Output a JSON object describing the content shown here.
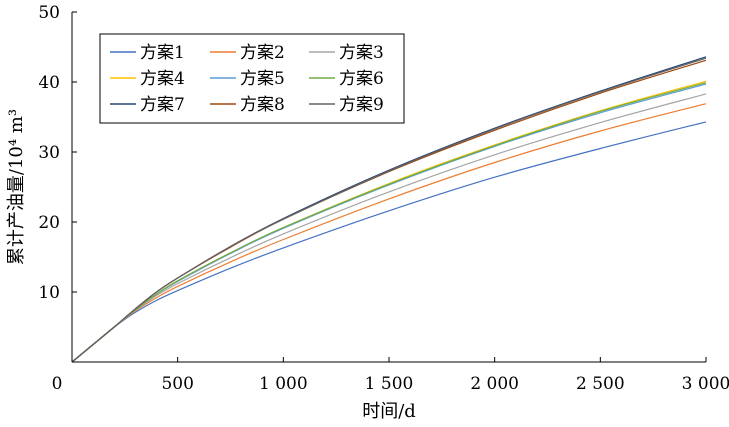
{
  "chart_data": {
    "type": "line",
    "xlabel": "时间/d",
    "ylabel": "累计产油量/10⁴ m³",
    "xlim": [
      0,
      3000
    ],
    "ylim": [
      0,
      50
    ],
    "x_ticks": [
      0,
      500,
      1000,
      1500,
      2000,
      2500,
      3000
    ],
    "x_tick_labels": [
      "0",
      "500",
      "1 000",
      "1 500",
      "2 000",
      "2 500",
      "3 000"
    ],
    "y_ticks": [
      10,
      20,
      30,
      40,
      50
    ],
    "y_tick_labels": [
      "10",
      "20",
      "30",
      "40",
      "50"
    ],
    "grid": false,
    "legend_position": "top-left",
    "x": [
      0,
      100,
      200,
      300,
      400,
      500,
      750,
      1000,
      1500,
      2000,
      2500,
      3000
    ],
    "series": [
      {
        "name": "方案1",
        "color": "#4472C4",
        "values": [
          0,
          2.5,
          5.0,
          7.1,
          8.8,
          10.2,
          13.4,
          16.3,
          21.6,
          26.4,
          30.5,
          34.3
        ]
      },
      {
        "name": "方案2",
        "color": "#ED7D31",
        "values": [
          0,
          2.5,
          5.0,
          7.3,
          9.2,
          10.8,
          14.3,
          17.5,
          23.3,
          28.5,
          33.0,
          36.9
        ]
      },
      {
        "name": "方案3",
        "color": "#A5A5A5",
        "values": [
          0,
          2.5,
          5.0,
          7.4,
          9.5,
          11.2,
          14.9,
          18.3,
          24.3,
          29.6,
          34.2,
          38.3
        ]
      },
      {
        "name": "方案4",
        "color": "#FFC000",
        "values": [
          0,
          2.5,
          5.0,
          7.5,
          9.7,
          11.6,
          15.6,
          19.2,
          25.5,
          31.0,
          35.9,
          40.1
        ]
      },
      {
        "name": "方案5",
        "color": "#5B9BD5",
        "values": [
          0,
          2.5,
          5.0,
          7.5,
          9.7,
          11.5,
          15.5,
          19.1,
          25.3,
          30.8,
          35.6,
          39.7
        ]
      },
      {
        "name": "方案6",
        "color": "#70AD47",
        "values": [
          0,
          2.5,
          5.0,
          7.5,
          9.7,
          11.6,
          15.6,
          19.2,
          25.4,
          30.9,
          35.8,
          39.9
        ]
      },
      {
        "name": "方案7",
        "color": "#264478",
        "values": [
          0,
          2.5,
          5.0,
          7.6,
          10.0,
          12.0,
          16.5,
          20.5,
          27.4,
          33.4,
          38.7,
          43.6
        ]
      },
      {
        "name": "方案8",
        "color": "#9E480E",
        "values": [
          0,
          2.5,
          5.0,
          7.6,
          10.0,
          12.0,
          16.4,
          20.4,
          27.2,
          33.1,
          38.4,
          43.1
        ]
      },
      {
        "name": "方案9",
        "color": "#636363",
        "values": [
          0,
          2.5,
          5.0,
          7.6,
          10.0,
          12.0,
          16.5,
          20.4,
          27.3,
          33.3,
          38.6,
          43.4
        ]
      }
    ]
  }
}
